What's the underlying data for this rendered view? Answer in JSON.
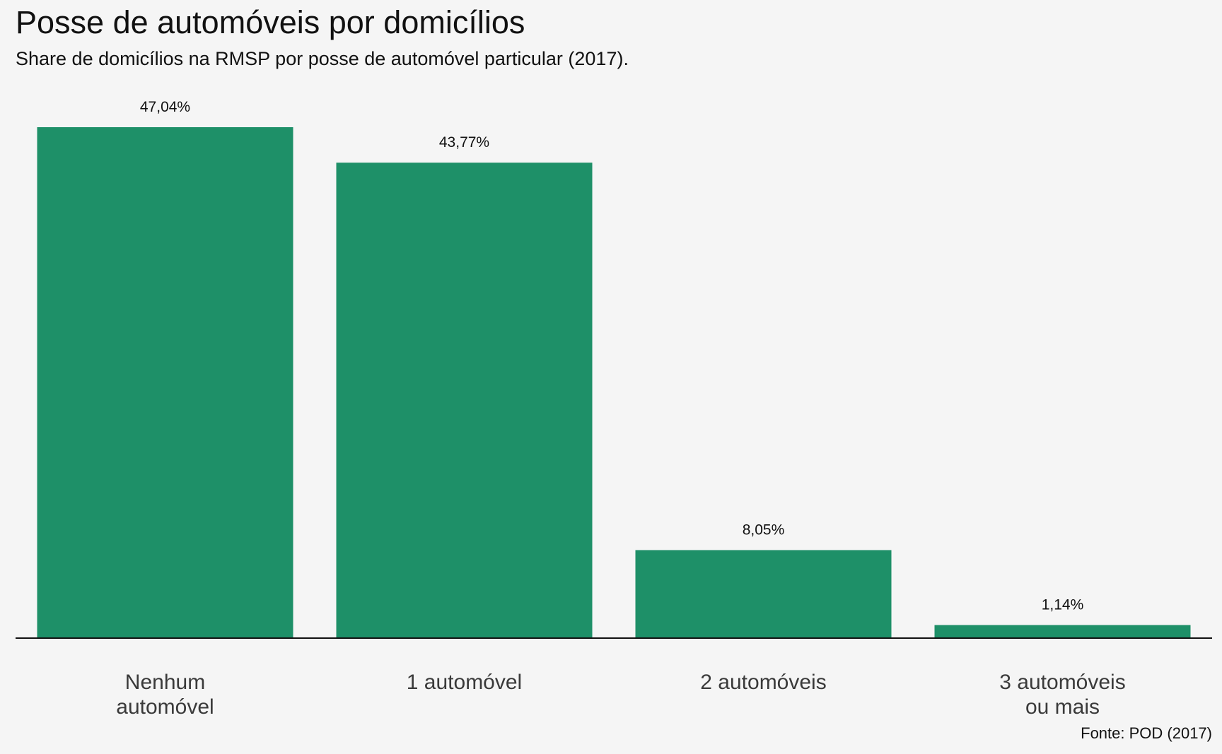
{
  "chart_data": {
    "type": "bar",
    "title": "Posse de automóveis por domicílios",
    "subtitle": "Share de domicílios na RMSP por posse de automóvel particular (2017).",
    "source": "Fonte: POD (2017)",
    "categories": [
      [
        "Nenhum",
        "automóvel"
      ],
      [
        "1 automóvel"
      ],
      [
        "2 automóveis"
      ],
      [
        "3 automóveis",
        "ou mais"
      ]
    ],
    "values": [
      47.04,
      43.77,
      8.05,
      1.14
    ],
    "data_labels": [
      "47,04%",
      "43,77%",
      "8,05%",
      "1,14%"
    ],
    "ylim": [
      0,
      47.04
    ],
    "grid": false,
    "legend": "none",
    "bar_color": "#1e9068",
    "axis_color": "#111111"
  }
}
